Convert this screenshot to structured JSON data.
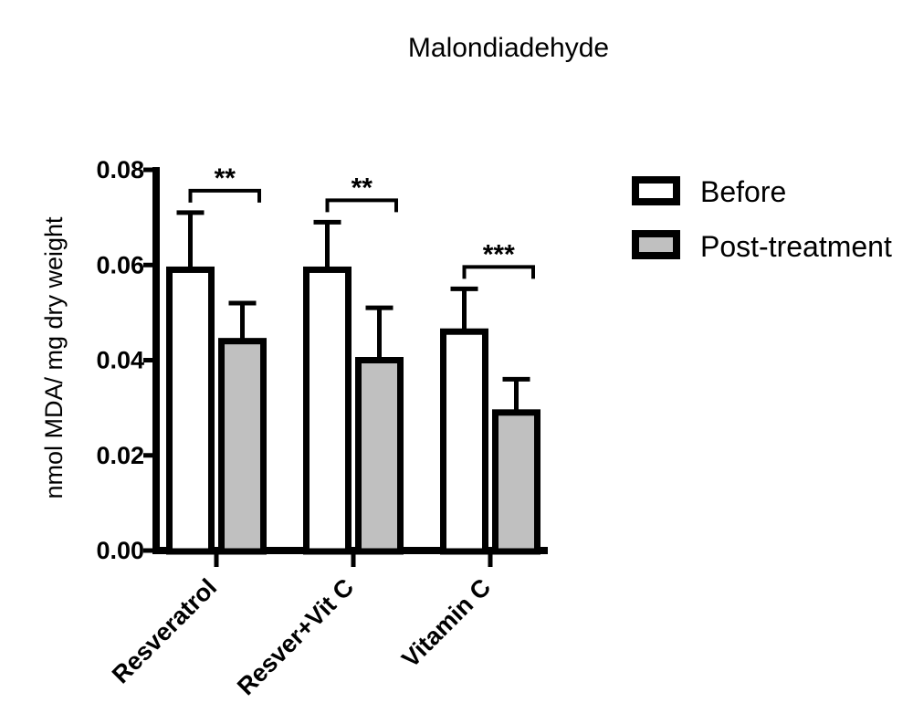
{
  "chart_data": {
    "type": "bar",
    "title": "Malondiadehyde",
    "xlabel": "",
    "ylabel": "nmol MDA/ mg dry weight",
    "ylim": [
      0,
      0.08
    ],
    "grid": false,
    "bar_fill_colors": {
      "before": "#FFFFFF",
      "post": "#C0C0C0"
    },
    "bar_edge_color": "#000000",
    "categories": [
      "Resveratrol",
      "Resver+Vit C",
      "Vitamin C"
    ],
    "series": [
      {
        "name": "Before",
        "color": "#FFFFFF",
        "values": [
          0.059,
          0.059,
          0.046
        ],
        "sd": [
          0.012,
          0.01,
          0.009
        ]
      },
      {
        "name": "Post-treatment",
        "color": "#C0C0C0",
        "values": [
          0.044,
          0.04,
          0.029
        ],
        "sd": [
          0.008,
          0.011,
          0.007
        ]
      }
    ],
    "error_bars": "sd, upper only",
    "yaxis_ticks": [
      "0.00",
      "0.02",
      "0.04",
      "0.06",
      "0.08"
    ],
    "significance": [
      {
        "category": "Resveratrol",
        "label": "**"
      },
      {
        "category": "Resver+Vit C",
        "label": "**"
      },
      {
        "category": "Vitamin C",
        "label": "***"
      }
    ],
    "legend": {
      "position": "right",
      "items": [
        "Before",
        "Post-treatment"
      ]
    }
  }
}
